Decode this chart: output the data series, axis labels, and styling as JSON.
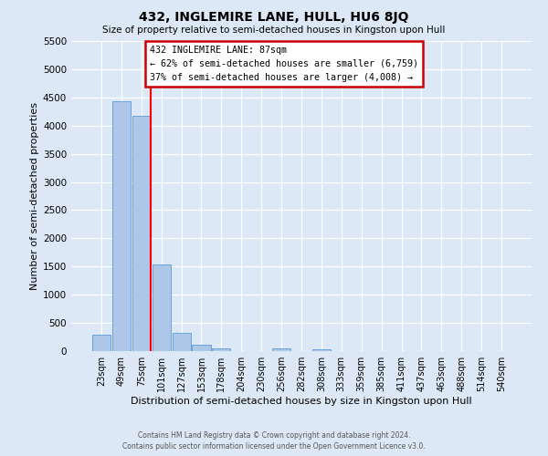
{
  "title": "432, INGLEMIRE LANE, HULL, HU6 8JQ",
  "subtitle": "Size of property relative to semi-detached houses in Kingston upon Hull",
  "xlabel": "Distribution of semi-detached houses by size in Kingston upon Hull",
  "ylabel": "Number of semi-detached properties",
  "categories": [
    "23sqm",
    "49sqm",
    "75sqm",
    "101sqm",
    "127sqm",
    "153sqm",
    "178sqm",
    "204sqm",
    "230sqm",
    "256sqm",
    "282sqm",
    "308sqm",
    "333sqm",
    "359sqm",
    "385sqm",
    "411sqm",
    "437sqm",
    "463sqm",
    "488sqm",
    "514sqm",
    "540sqm"
  ],
  "bar_heights": [
    290,
    4430,
    4180,
    1530,
    330,
    110,
    55,
    0,
    0,
    45,
    0,
    30,
    0,
    0,
    0,
    0,
    0,
    0,
    0,
    0,
    0
  ],
  "bar_color": "#aec6e8",
  "bar_edge_color": "#5b9bd5",
  "background_color": "#dce8f5",
  "grid_color": "#ffffff",
  "annotation_box_text_line1": "432 INGLEMIRE LANE: 87sqm",
  "annotation_box_text_line2": "← 62% of semi-detached houses are smaller (6,759)",
  "annotation_box_text_line3": "37% of semi-detached houses are larger (4,008) →",
  "annotation_box_edge_color": "#cc0000",
  "ylim": [
    0,
    5500
  ],
  "yticks": [
    0,
    500,
    1000,
    1500,
    2000,
    2500,
    3000,
    3500,
    4000,
    4500,
    5000,
    5500
  ],
  "footer_line1": "Contains HM Land Registry data © Crown copyright and database right 2024.",
  "footer_line2": "Contains public sector information licensed under the Open Government Licence v3.0."
}
